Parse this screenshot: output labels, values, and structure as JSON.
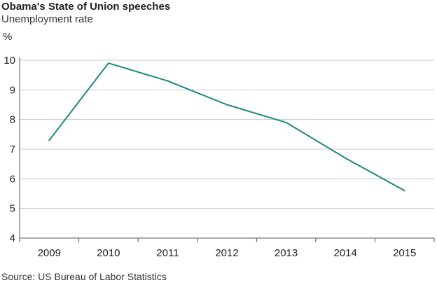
{
  "chart_data": {
    "type": "line",
    "title": "Obama's State of Union speeches",
    "subtitle": "Unemployment rate",
    "ylabel": "%",
    "xlabel": "",
    "categories": [
      "2009",
      "2010",
      "2011",
      "2012",
      "2013",
      "2014",
      "2015"
    ],
    "series": [
      {
        "values": [
          7.3,
          9.9,
          9.3,
          8.5,
          7.9,
          6.7,
          5.6
        ],
        "color": "#1b8780"
      }
    ],
    "ylim": [
      4,
      10
    ],
    "yticks": [
      4,
      5,
      6,
      7,
      8,
      9,
      10
    ],
    "grid": true,
    "legend": "none",
    "source": "Source: US Bureau of Labor Statistics"
  }
}
